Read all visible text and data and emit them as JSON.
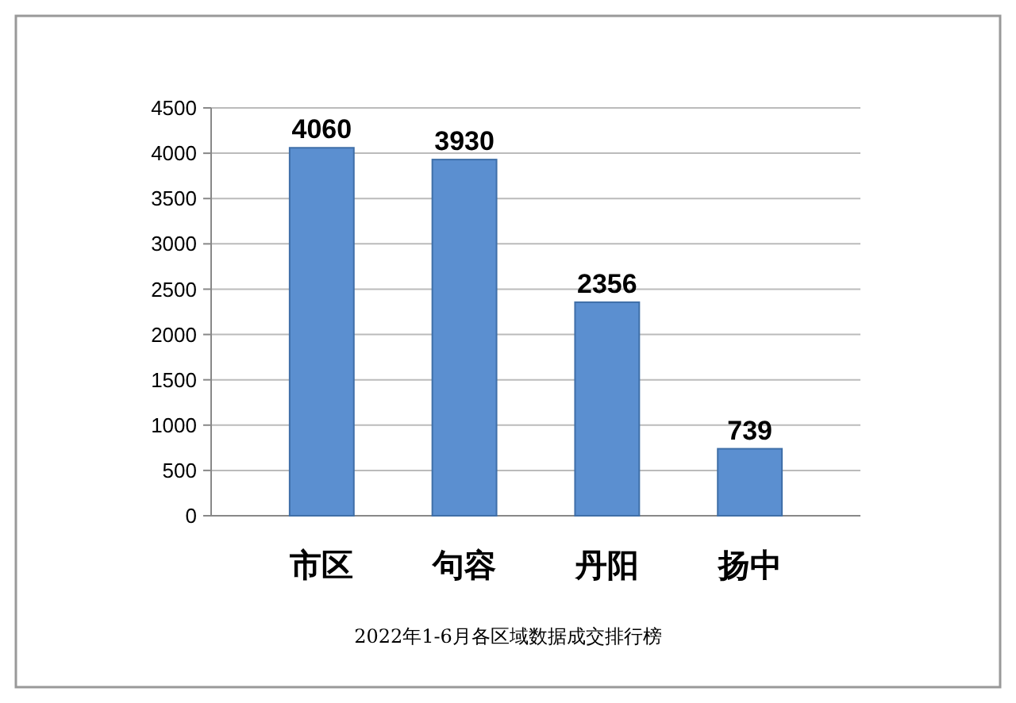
{
  "chart_data": {
    "type": "bar",
    "title": "2022年1-6月各区域数据成交排行榜",
    "categories": [
      "市区",
      "句容",
      "丹阳",
      "扬中"
    ],
    "values": [
      4060,
      3930,
      2356,
      739
    ],
    "color": "#5b8fd0",
    "ylim": [
      0,
      4500
    ],
    "yticks": [
      0,
      500,
      1000,
      1500,
      2000,
      2500,
      3000,
      3500,
      4000,
      4500
    ],
    "grid": "y",
    "data_labels": true
  }
}
